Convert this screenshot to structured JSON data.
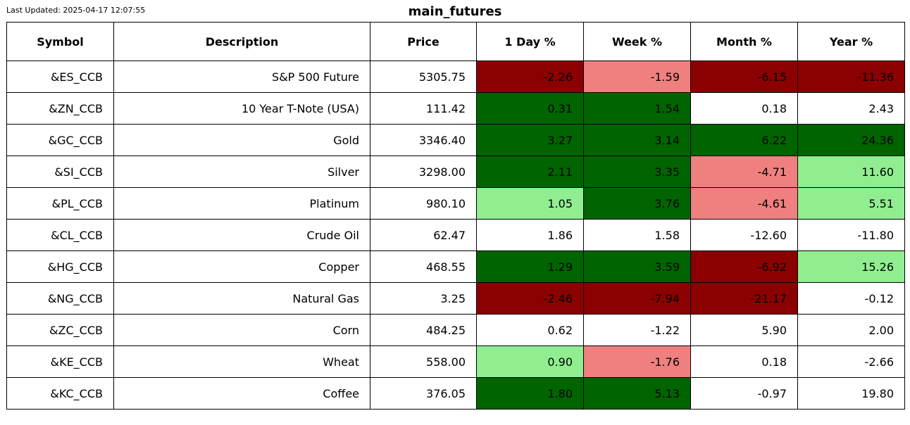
{
  "last_updated": "Last Updated: 2025-04-17 12:07:55",
  "title": "main_futures",
  "colors": {
    "strong_negative": "#8b0000",
    "mild_negative": "#f08080",
    "strong_positive": "#006400",
    "mild_positive": "#90ee90",
    "neutral": "#ffffff"
  },
  "chart_data": {
    "type": "table",
    "title": "main_futures",
    "columns": [
      "Symbol",
      "Description",
      "Price",
      "1 Day %",
      "Week %",
      "Month %",
      "Year %"
    ],
    "rows": [
      {
        "symbol": "&ES_CCB",
        "description": "S&P 500 Future",
        "price": "5305.75",
        "cells": [
          {
            "value": "-2.26",
            "shade": "strong_negative"
          },
          {
            "value": "-1.59",
            "shade": "mild_negative"
          },
          {
            "value": "-6.15",
            "shade": "strong_negative"
          },
          {
            "value": "-11.36",
            "shade": "strong_negative"
          }
        ]
      },
      {
        "symbol": "&ZN_CCB",
        "description": "10 Year T-Note (USA)",
        "price": "111.42",
        "cells": [
          {
            "value": "0.31",
            "shade": "strong_positive"
          },
          {
            "value": "1.54",
            "shade": "strong_positive"
          },
          {
            "value": "0.18",
            "shade": "neutral"
          },
          {
            "value": "2.43",
            "shade": "neutral"
          }
        ]
      },
      {
        "symbol": "&GC_CCB",
        "description": "Gold",
        "price": "3346.40",
        "cells": [
          {
            "value": "3.27",
            "shade": "strong_positive"
          },
          {
            "value": "3.14",
            "shade": "strong_positive"
          },
          {
            "value": "6.22",
            "shade": "strong_positive"
          },
          {
            "value": "24.36",
            "shade": "strong_positive"
          }
        ]
      },
      {
        "symbol": "&SI_CCB",
        "description": "Silver",
        "price": "3298.00",
        "cells": [
          {
            "value": "2.11",
            "shade": "strong_positive"
          },
          {
            "value": "3.35",
            "shade": "strong_positive"
          },
          {
            "value": "-4.71",
            "shade": "mild_negative"
          },
          {
            "value": "11.60",
            "shade": "mild_positive"
          }
        ]
      },
      {
        "symbol": "&PL_CCB",
        "description": "Platinum",
        "price": "980.10",
        "cells": [
          {
            "value": "1.05",
            "shade": "mild_positive"
          },
          {
            "value": "3.76",
            "shade": "strong_positive"
          },
          {
            "value": "-4.61",
            "shade": "mild_negative"
          },
          {
            "value": "5.51",
            "shade": "mild_positive"
          }
        ]
      },
      {
        "symbol": "&CL_CCB",
        "description": "Crude Oil",
        "price": "62.47",
        "cells": [
          {
            "value": "1.86",
            "shade": "neutral"
          },
          {
            "value": "1.58",
            "shade": "neutral"
          },
          {
            "value": "-12.60",
            "shade": "neutral"
          },
          {
            "value": "-11.80",
            "shade": "neutral"
          }
        ]
      },
      {
        "symbol": "&HG_CCB",
        "description": "Copper",
        "price": "468.55",
        "cells": [
          {
            "value": "1.29",
            "shade": "strong_positive"
          },
          {
            "value": "3.59",
            "shade": "strong_positive"
          },
          {
            "value": "-6.92",
            "shade": "strong_negative"
          },
          {
            "value": "15.26",
            "shade": "mild_positive"
          }
        ]
      },
      {
        "symbol": "&NG_CCB",
        "description": "Natural Gas",
        "price": "3.25",
        "cells": [
          {
            "value": "-2.46",
            "shade": "strong_negative"
          },
          {
            "value": "-7.94",
            "shade": "strong_negative"
          },
          {
            "value": "-21.17",
            "shade": "strong_negative"
          },
          {
            "value": "-0.12",
            "shade": "neutral"
          }
        ]
      },
      {
        "symbol": "&ZC_CCB",
        "description": "Corn",
        "price": "484.25",
        "cells": [
          {
            "value": "0.62",
            "shade": "neutral"
          },
          {
            "value": "-1.22",
            "shade": "neutral"
          },
          {
            "value": "5.90",
            "shade": "neutral"
          },
          {
            "value": "2.00",
            "shade": "neutral"
          }
        ]
      },
      {
        "symbol": "&KE_CCB",
        "description": "Wheat",
        "price": "558.00",
        "cells": [
          {
            "value": "0.90",
            "shade": "mild_positive"
          },
          {
            "value": "-1.76",
            "shade": "mild_negative"
          },
          {
            "value": "0.18",
            "shade": "neutral"
          },
          {
            "value": "-2.66",
            "shade": "neutral"
          }
        ]
      },
      {
        "symbol": "&KC_CCB",
        "description": "Coffee",
        "price": "376.05",
        "cells": [
          {
            "value": "1.80",
            "shade": "strong_positive"
          },
          {
            "value": "5.13",
            "shade": "strong_positive"
          },
          {
            "value": "-0.97",
            "shade": "neutral"
          },
          {
            "value": "19.80",
            "shade": "neutral"
          }
        ]
      }
    ]
  }
}
